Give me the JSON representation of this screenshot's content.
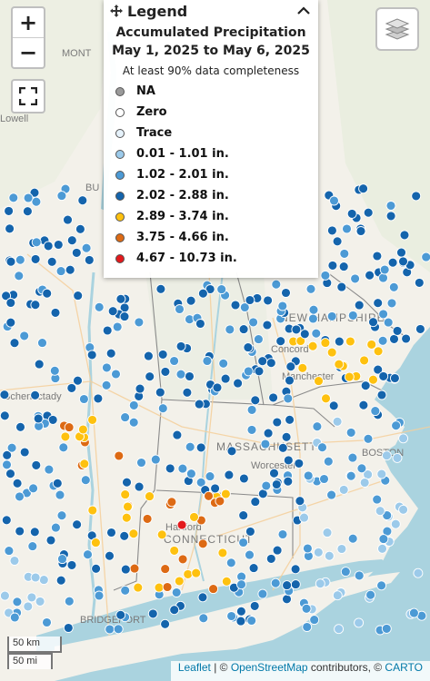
{
  "map": {
    "zoom_in": "+",
    "zoom_out": "−",
    "scale_km": "50 km",
    "scale_mi": "50 mi",
    "colors": {
      "land": "#f2efe9",
      "water": "#aad3df",
      "gray": "#9a9a9a",
      "zero": "#ffffff",
      "trace": "#e6f2fb",
      "r1": "#9ccaea",
      "r2": "#4c9ad5",
      "r3": "#1464ac",
      "r4": "#fec10f",
      "r5": "#dd6a14",
      "r6": "#e3191c"
    },
    "place_labels": [
      "MONT",
      "BU",
      "NEW HAMPSHIRE",
      "Concord",
      "Manchester",
      "MASSACHUSETTS",
      "BOSTON",
      "Hartford",
      "CONNECTICUT",
      "BRIDGEPORT",
      "Schenectady",
      "Worcester",
      "Lowell"
    ],
    "attribution": {
      "leaflet": "Leaflet",
      "sep": " | © ",
      "osm": "OpenStreetMap",
      "contrib": " contributors, © ",
      "carto": "CARTO"
    }
  },
  "legend": {
    "header": "Legend",
    "title_line1": "Accumulated Precipitation",
    "title_line2": "May 1, 2025 to May 6, 2025",
    "subtitle": "At least 90% data completeness",
    "items": [
      {
        "label": "NA",
        "color": "#9a9a9a"
      },
      {
        "label": "Zero",
        "color": "#ffffff"
      },
      {
        "label": "Trace",
        "color": "#e6f2fb"
      },
      {
        "label": "0.01 - 1.01 in.",
        "color": "#9ccaea"
      },
      {
        "label": "1.02 - 2.01 in.",
        "color": "#4c9ad5"
      },
      {
        "label": "2.02 - 2.88 in.",
        "color": "#1464ac"
      },
      {
        "label": "2.89 - 3.74 in.",
        "color": "#fec10f"
      },
      {
        "label": "3.75 - 4.66 in.",
        "color": "#dd6a14"
      },
      {
        "label": "4.67 - 10.73 in.",
        "color": "#e3191c"
      }
    ]
  }
}
